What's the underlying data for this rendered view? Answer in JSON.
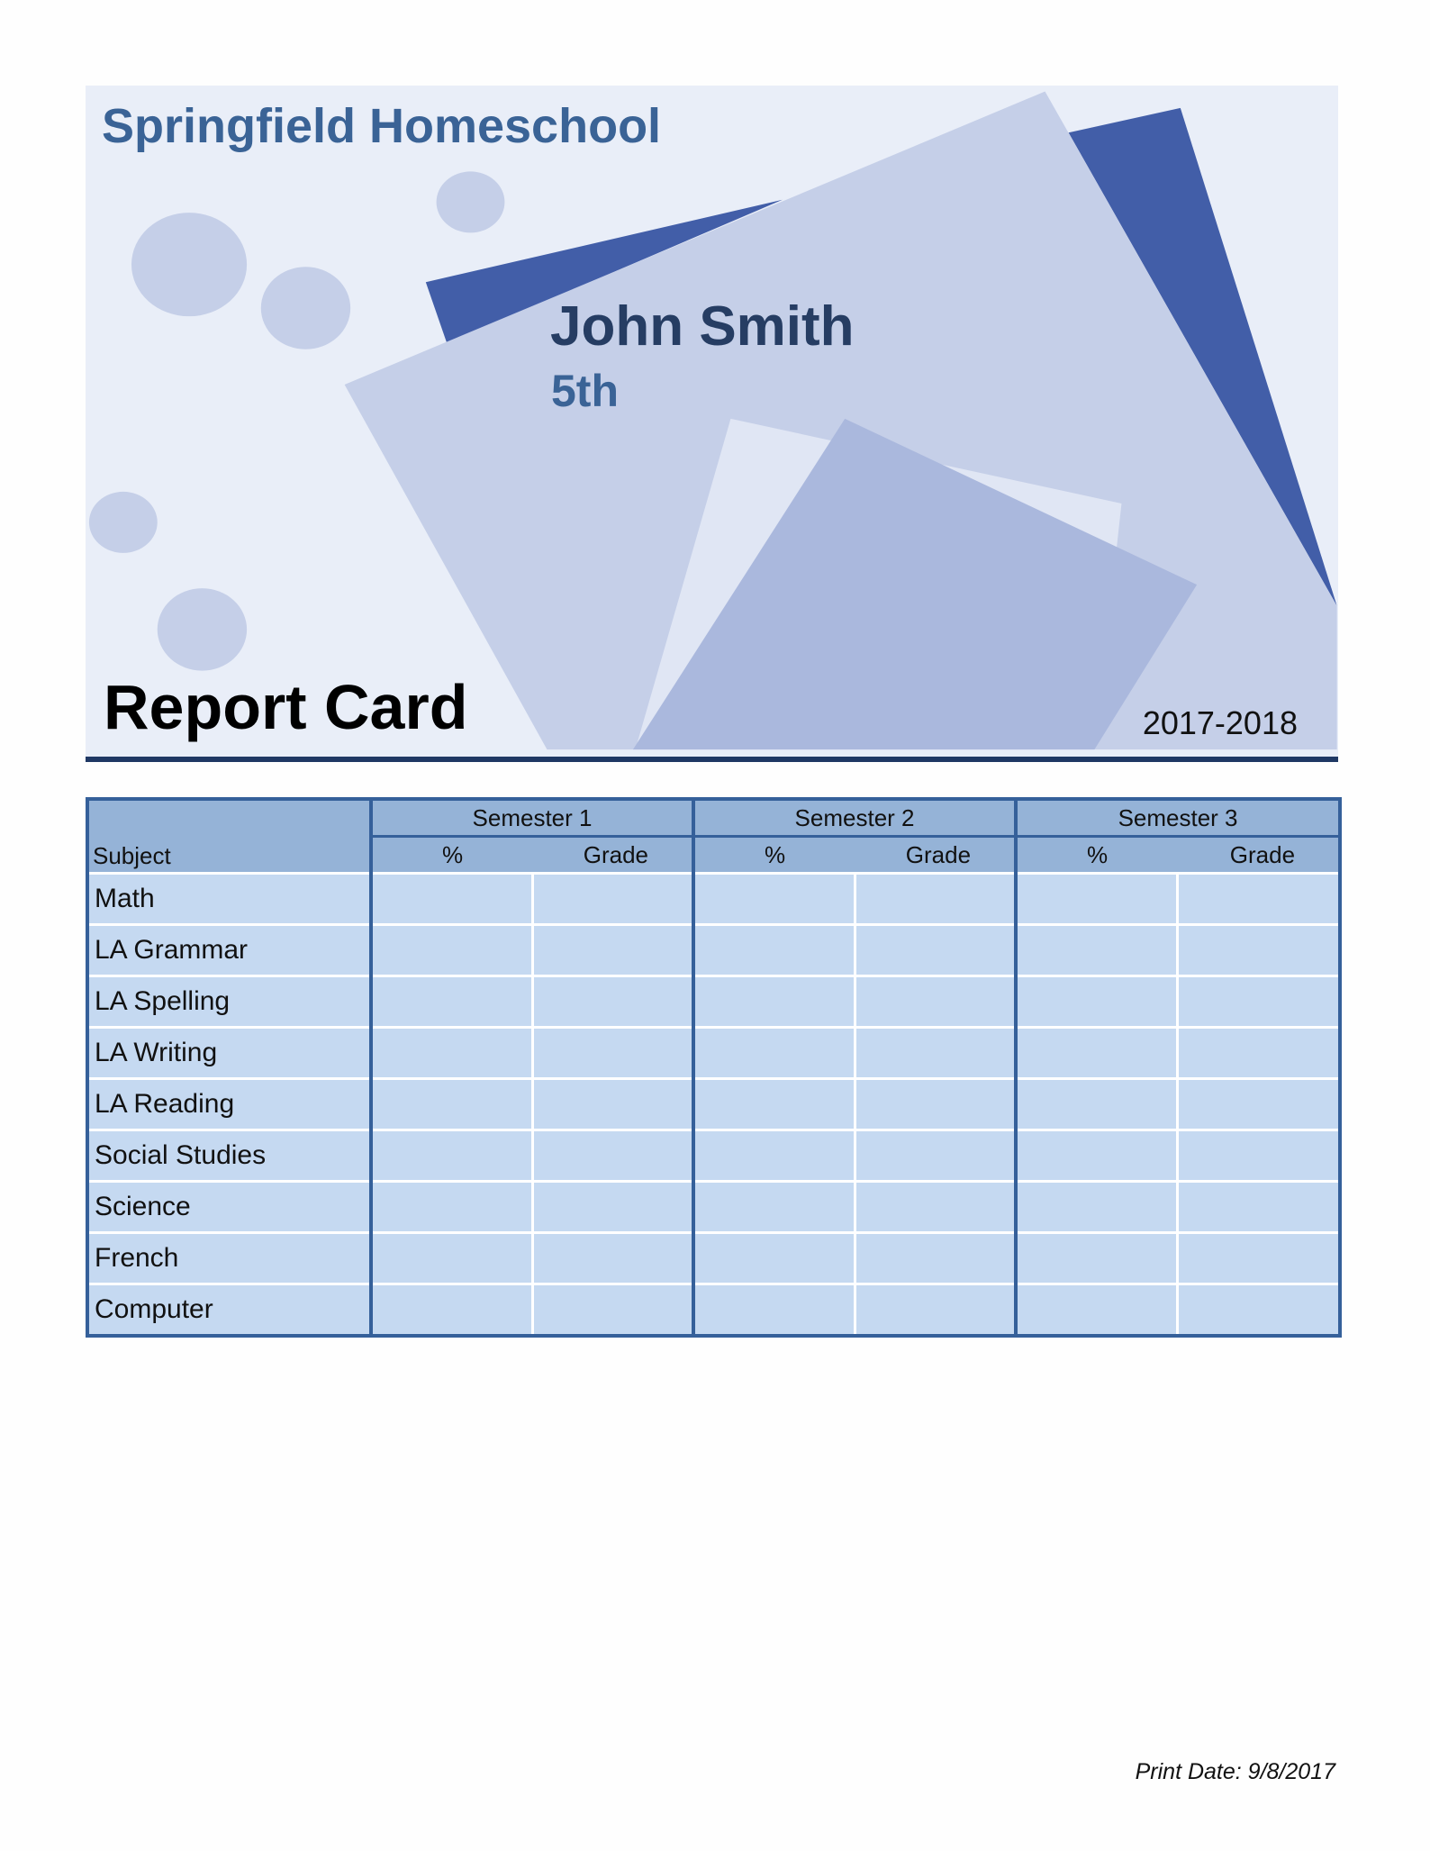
{
  "header": {
    "school": "Springfield Homeschool",
    "student_name": "John Smith",
    "grade_level": "5th",
    "title": "Report Card",
    "school_year": "2017-2018",
    "colors": {
      "background": "#e9eef8",
      "dark_blue": "#425ea8",
      "light_blue": "#c5cfe8",
      "mid_blue": "#aab8dd",
      "rule": "#1f3864"
    }
  },
  "table": {
    "subject_header": "Subject",
    "semesters": [
      "Semester 1",
      "Semester 2",
      "Semester 3"
    ],
    "sub_columns": [
      "%",
      "Grade"
    ],
    "subjects": [
      "Math",
      "LA Grammar",
      "LA Spelling",
      "LA Writing",
      "LA Reading",
      "Social Studies",
      "Science",
      "French",
      "Computer"
    ]
  },
  "footer": {
    "print_date": "Print Date: 9/8/2017"
  }
}
